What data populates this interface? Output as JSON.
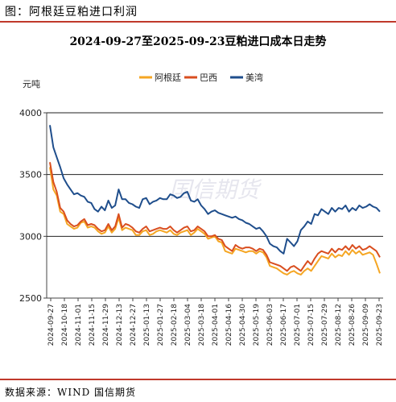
{
  "figure": {
    "title": "图：阿根廷豆粕进口利润",
    "source": "数据来源：WIND    国信期货"
  },
  "colors": {
    "argentina": "#f5a623",
    "brazil": "#d94e1f",
    "us": "#1f4e8c",
    "accent_rule": "#c0392b"
  },
  "chart_data": {
    "type": "line",
    "title": "2024-09-27至2025-09-23豆粕进口成本日走势",
    "ylabel": "元吨",
    "ylim": [
      2500,
      4000
    ],
    "yticks": [
      "2500",
      "3000",
      "3500",
      "4000"
    ],
    "grid": "horizontal",
    "legend_position": "top-center",
    "xticks": [
      "2024-09-27",
      "2024-10-18",
      "2024-11-01",
      "2024-11-15",
      "2024-11-29",
      "2024-12-13",
      "2024-12-27",
      "2025-01-13",
      "2025-01-27",
      "2025-02-18",
      "2025-03-04",
      "2025-03-18",
      "2025-04-01",
      "2025-04-16",
      "2025-04-30",
      "2025-05-19",
      "2025-06-03",
      "2025-06-17",
      "2025-07-01",
      "2025-07-15",
      "2025-07-29",
      "2025-08-12",
      "2025-08-26",
      "2025-09-09",
      "2025-09-23"
    ],
    "series": [
      {
        "name": "阿根廷",
        "values": [
          3560,
          3380,
          3330,
          3200,
          3180,
          3100,
          3080,
          3060,
          3070,
          3110,
          3120,
          3070,
          3080,
          3070,
          3040,
          3020,
          3030,
          3080,
          3030,
          3060,
          3150,
          3050,
          3070,
          3060,
          3050,
          3010,
          3010,
          3040,
          3050,
          3010,
          3020,
          3040,
          3050,
          3040,
          3030,
          3050,
          3020,
          3010,
          3030,
          3040,
          3050,
          3010,
          3030,
          3060,
          3040,
          3020,
          2980,
          2990,
          3000,
          2960,
          2950,
          2880,
          2870,
          2860,
          2900,
          2890,
          2880,
          2870,
          2880,
          2880,
          2860,
          2880,
          2870,
          2830,
          2760,
          2750,
          2740,
          2720,
          2700,
          2690,
          2710,
          2720,
          2700,
          2690,
          2720,
          2740,
          2720,
          2760,
          2800,
          2840,
          2830,
          2820,
          2860,
          2830,
          2850,
          2840,
          2880,
          2850,
          2890,
          2860,
          2880,
          2850,
          2860,
          2870,
          2850,
          2780,
          2700
        ]
      },
      {
        "name": "巴西",
        "values": [
          3600,
          3440,
          3360,
          3230,
          3200,
          3130,
          3100,
          3080,
          3090,
          3120,
          3140,
          3090,
          3100,
          3090,
          3060,
          3040,
          3050,
          3100,
          3050,
          3080,
          3180,
          3070,
          3100,
          3090,
          3070,
          3040,
          3030,
          3060,
          3080,
          3040,
          3050,
          3060,
          3070,
          3060,
          3060,
          3080,
          3050,
          3030,
          3050,
          3070,
          3080,
          3040,
          3050,
          3080,
          3060,
          3040,
          3000,
          3000,
          3010,
          2980,
          2970,
          2920,
          2900,
          2880,
          2930,
          2910,
          2900,
          2910,
          2910,
          2900,
          2880,
          2900,
          2890,
          2850,
          2790,
          2780,
          2770,
          2760,
          2740,
          2720,
          2750,
          2760,
          2740,
          2720,
          2760,
          2800,
          2770,
          2820,
          2860,
          2880,
          2870,
          2860,
          2900,
          2870,
          2900,
          2890,
          2920,
          2890,
          2930,
          2900,
          2920,
          2890,
          2900,
          2920,
          2900,
          2880,
          2830
        ]
      },
      {
        "name": "美湾",
        "values": [
          3900,
          3720,
          3640,
          3560,
          3470,
          3420,
          3380,
          3340,
          3350,
          3330,
          3320,
          3280,
          3270,
          3220,
          3200,
          3240,
          3210,
          3290,
          3230,
          3250,
          3380,
          3300,
          3300,
          3270,
          3260,
          3240,
          3230,
          3300,
          3310,
          3260,
          3280,
          3290,
          3310,
          3300,
          3300,
          3340,
          3330,
          3310,
          3320,
          3350,
          3360,
          3290,
          3280,
          3300,
          3250,
          3220,
          3180,
          3200,
          3210,
          3190,
          3180,
          3170,
          3160,
          3150,
          3160,
          3140,
          3130,
          3110,
          3100,
          3080,
          3060,
          3070,
          3040,
          3000,
          2940,
          2920,
          2910,
          2880,
          2860,
          2980,
          2950,
          2920,
          2960,
          3050,
          3080,
          3120,
          3100,
          3180,
          3170,
          3220,
          3200,
          3180,
          3230,
          3200,
          3230,
          3220,
          3250,
          3200,
          3230,
          3210,
          3250,
          3230,
          3240,
          3260,
          3240,
          3230,
          3200
        ]
      }
    ]
  }
}
